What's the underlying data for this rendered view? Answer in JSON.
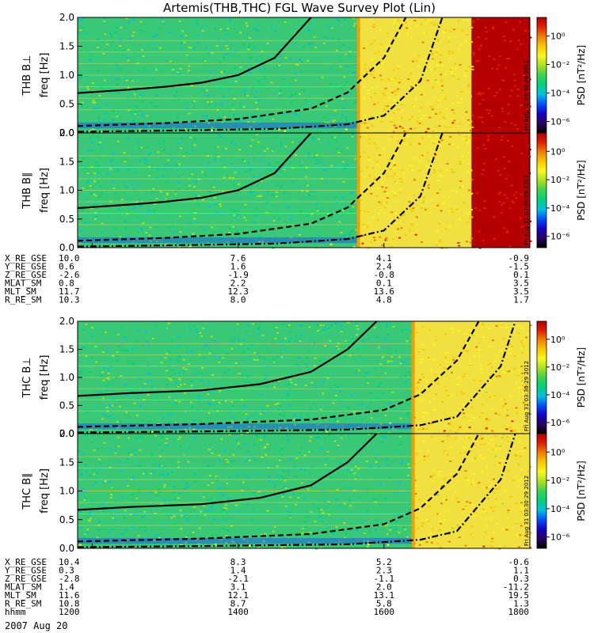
{
  "chart_data": {
    "type": "heatmap",
    "title": "Artemis(THB,THC) FGL Wave Survey Plot (Lin)",
    "date_label": "2007 Aug 20",
    "x_axis": {
      "name": "hhmm",
      "ticks": [
        "1200",
        "1400",
        "1600",
        "1800"
      ],
      "time_range_hours": [
        11.8,
        18.0
      ]
    },
    "colorbar": {
      "label": "PSD [nT²/Hz]",
      "scale": "log",
      "range_exponent": [
        -6.8,
        1.3
      ],
      "tick_labels": [
        {
          "exp": 0,
          "text": "10⁰"
        },
        {
          "exp": -2,
          "text": "10⁻²"
        },
        {
          "exp": -4,
          "text": "10⁻⁴"
        },
        {
          "exp": -6,
          "text": "10⁻⁶"
        }
      ],
      "colors": [
        "#000000",
        "#2a0060",
        "#1400c8",
        "#0050ff",
        "#00c0e0",
        "#00d07a",
        "#3cd24a",
        "#a8e020",
        "#f8f820",
        "#f8c800",
        "#f08000",
        "#e02000",
        "#b00000"
      ]
    },
    "ylabel": "freq [Hz]",
    "y_ticks": [
      "0.0",
      "0.5",
      "1.0",
      "1.5",
      "2.0"
    ],
    "ylim": [
      0.0,
      2.0
    ],
    "stamp": "Fri Aug 31 03:30:29 2012",
    "probes": [
      {
        "name": "THB",
        "panels": [
          {
            "label": "THB B⊥",
            "shock_hour": 15.65,
            "saturated_from_hour": 17.2
          },
          {
            "label": "THB B∥",
            "shock_hour": 15.65,
            "saturated_from_hour": 17.2
          }
        ],
        "cyclotron_curves": {
          "solid_hours": [
            11.8,
            12.5,
            13.0,
            13.5,
            14.0,
            14.5,
            15.0
          ],
          "solid_freq": [
            0.69,
            0.75,
            0.8,
            0.87,
            1.0,
            1.3,
            2.0
          ],
          "dashed_hours": [
            11.8,
            13.0,
            14.0,
            15.0,
            15.5,
            16.0,
            16.3
          ],
          "dashed_freq": [
            0.12,
            0.17,
            0.24,
            0.42,
            0.7,
            1.3,
            2.0
          ],
          "dashdot_hours": [
            11.8,
            13.0,
            14.5,
            15.5,
            16.0,
            16.5,
            16.8
          ],
          "dashdot_freq": [
            0.02,
            0.04,
            0.07,
            0.15,
            0.3,
            0.9,
            2.0
          ]
        },
        "ephemeris": {
          "rows": [
            {
              "label": "X_RE_GSE",
              "values": [
                "10.0",
                "7.6",
                "4.1",
                "-0.9"
              ]
            },
            {
              "label": "Y_RE_GSE",
              "values": [
                "0.6",
                "1.6",
                "2.4",
                "-1.5"
              ]
            },
            {
              "label": "Z_RE_GSE",
              "values": [
                "-2.6",
                "-1.9",
                "-0.8",
                "0.1"
              ]
            },
            {
              "label": "MLAT_SM",
              "values": [
                "0.8",
                "2.2",
                "0.1",
                "3.5"
              ]
            },
            {
              "label": "MLT_SM",
              "values": [
                "11.7",
                "12.3",
                "13.6",
                "3.5"
              ]
            },
            {
              "label": "R_RE_SM",
              "values": [
                "10.3",
                "8.0",
                "4.8",
                "1.7"
              ]
            }
          ]
        }
      },
      {
        "name": "THC",
        "panels": [
          {
            "label": "THC B⊥",
            "shock_hour": 16.4,
            "saturated_from_hour": null
          },
          {
            "label": "THC B∥",
            "shock_hour": 16.4,
            "saturated_from_hour": null
          }
        ],
        "cyclotron_curves": {
          "solid_hours": [
            11.8,
            12.5,
            13.5,
            14.3,
            15.0,
            15.5,
            15.9
          ],
          "solid_freq": [
            0.67,
            0.72,
            0.77,
            0.88,
            1.1,
            1.5,
            2.0
          ],
          "dashed_hours": [
            11.8,
            13.5,
            15.0,
            16.0,
            16.5,
            17.0,
            17.3
          ],
          "dashed_freq": [
            0.12,
            0.17,
            0.25,
            0.42,
            0.7,
            1.3,
            2.0
          ],
          "dashdot_hours": [
            11.8,
            13.5,
            15.5,
            16.5,
            17.0,
            17.6,
            17.8
          ],
          "dashdot_freq": [
            0.02,
            0.04,
            0.07,
            0.15,
            0.3,
            1.2,
            2.0
          ]
        },
        "ephemeris": {
          "rows": [
            {
              "label": "X_RE_GSE",
              "values": [
                "10.4",
                "8.3",
                "5.2",
                "-0.6"
              ]
            },
            {
              "label": "Y_RE_GSE",
              "values": [
                "0.3",
                "1.4",
                "2.3",
                "1.1"
              ]
            },
            {
              "label": "Z_RE_GSE",
              "values": [
                "-2.8",
                "-2.1",
                "-1.1",
                "0.3"
              ]
            },
            {
              "label": "MLAT_SM",
              "values": [
                "1.4",
                "3.1",
                "2.0",
                "-11.2"
              ]
            },
            {
              "label": "MLT_SM",
              "values": [
                "11.6",
                "12.1",
                "13.1",
                "19.5"
              ]
            },
            {
              "label": "R_RE_SM",
              "values": [
                "10.8",
                "8.7",
                "5.8",
                "1.3"
              ]
            }
          ]
        }
      }
    ]
  }
}
